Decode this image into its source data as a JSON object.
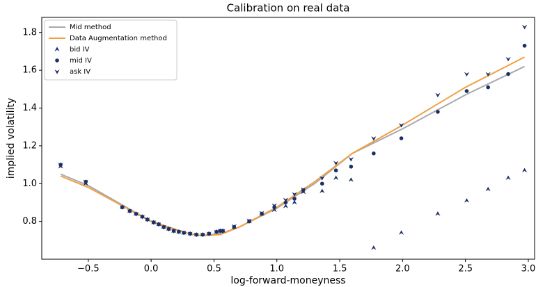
{
  "chart_data": {
    "type": "line",
    "title": "Calibration on real data",
    "xlabel": "log-forward-moneyness",
    "ylabel": "implied volatility",
    "xlim": [
      -0.87,
      3.05
    ],
    "ylim": [
      0.6,
      1.88
    ],
    "xticks": [
      {
        "value": -0.5,
        "label": "−0.5"
      },
      {
        "value": 0,
        "label": "0.0"
      },
      0.5,
      {
        "value": 1,
        "label": "1.0"
      },
      1.5,
      {
        "value": 2,
        "label": "2.0"
      },
      2.5,
      {
        "value": 3,
        "label": "3.0"
      }
    ],
    "yticks": [
      0.8,
      {
        "value": 1,
        "label": "1.0"
      },
      1.2,
      1.4,
      1.6,
      1.8
    ],
    "grid": false,
    "legend": "upper-left",
    "series": [
      {
        "name": "Mid method",
        "mode": "line",
        "color": "#a9a9ad",
        "x": [
          -0.72,
          -0.5,
          0,
          0.3,
          0.4,
          0.55,
          0.7,
          1.0,
          1.3,
          1.6,
          2.0,
          2.5,
          2.97
        ],
        "values": [
          1.05,
          0.99,
          0.8,
          0.735,
          0.725,
          0.735,
          0.77,
          0.87,
          1.0,
          1.16,
          1.29,
          1.47,
          1.62
        ]
      },
      {
        "name": "Data Augmentation method",
        "mode": "line",
        "color": "#f0a043",
        "x": [
          -0.72,
          -0.5,
          0,
          0.3,
          0.4,
          0.55,
          0.7,
          1.0,
          1.3,
          1.6,
          2.0,
          2.5,
          2.97
        ],
        "values": [
          1.04,
          0.98,
          0.8,
          0.735,
          0.725,
          0.73,
          0.77,
          0.875,
          1.01,
          1.16,
          1.31,
          1.51,
          1.67
        ]
      },
      {
        "name": "bid IV",
        "mode": "scatter",
        "marker": "up",
        "color": "#1c2f66",
        "x": [
          -0.72,
          -0.52,
          -0.23,
          -0.17,
          -0.12,
          -0.07,
          -0.03,
          0.02,
          0.06,
          0.1,
          0.14,
          0.18,
          0.22,
          0.26,
          0.31,
          0.36,
          0.41,
          0.46,
          0.52,
          0.55,
          0.57,
          0.66,
          0.78,
          0.88,
          0.98,
          1.07,
          1.14,
          1.21,
          1.36,
          1.47,
          1.59,
          1.77,
          1.99,
          2.28,
          2.51,
          2.68,
          2.84,
          2.97
        ],
        "values": [
          1.09,
          1.0,
          0.875,
          0.855,
          0.84,
          0.825,
          0.81,
          0.795,
          0.785,
          0.77,
          0.76,
          0.75,
          0.745,
          0.74,
          0.735,
          0.73,
          0.73,
          0.735,
          0.745,
          0.75,
          0.75,
          0.77,
          0.8,
          0.84,
          0.86,
          0.88,
          0.9,
          0.955,
          0.96,
          1.03,
          1.02,
          0.66,
          0.74,
          0.84,
          0.91,
          0.97,
          1.03,
          1.07
        ]
      },
      {
        "name": "mid IV",
        "mode": "scatter",
        "marker": "circle",
        "color": "#1c2f66",
        "x": [
          -0.72,
          -0.52,
          -0.23,
          -0.17,
          -0.12,
          -0.07,
          -0.03,
          0.02,
          0.06,
          0.1,
          0.14,
          0.18,
          0.22,
          0.26,
          0.31,
          0.36,
          0.41,
          0.46,
          0.52,
          0.55,
          0.57,
          0.66,
          0.78,
          0.88,
          0.98,
          1.07,
          1.14,
          1.21,
          1.36,
          1.47,
          1.59,
          1.77,
          1.99,
          2.28,
          2.51,
          2.68,
          2.84,
          2.97
        ],
        "values": [
          1.1,
          1.01,
          0.875,
          0.855,
          0.84,
          0.825,
          0.81,
          0.795,
          0.785,
          0.77,
          0.76,
          0.75,
          0.745,
          0.74,
          0.735,
          0.73,
          0.73,
          0.735,
          0.745,
          0.75,
          0.75,
          0.77,
          0.8,
          0.84,
          0.875,
          0.9,
          0.92,
          0.965,
          1.0,
          1.07,
          1.09,
          1.16,
          1.24,
          1.38,
          1.49,
          1.51,
          1.58,
          1.73
        ]
      },
      {
        "name": "ask IV",
        "mode": "scatter",
        "marker": "down",
        "color": "#1c2f66",
        "x": [
          -0.72,
          -0.52,
          -0.23,
          -0.17,
          -0.12,
          -0.07,
          -0.03,
          0.02,
          0.06,
          0.1,
          0.14,
          0.18,
          0.22,
          0.26,
          0.31,
          0.36,
          0.41,
          0.46,
          0.52,
          0.55,
          0.57,
          0.66,
          0.78,
          0.88,
          0.98,
          1.07,
          1.14,
          1.21,
          1.36,
          1.47,
          1.59,
          1.77,
          1.99,
          2.28,
          2.51,
          2.68,
          2.84,
          2.97
        ],
        "values": [
          1.1,
          1.01,
          0.875,
          0.855,
          0.84,
          0.825,
          0.81,
          0.795,
          0.785,
          0.77,
          0.76,
          0.75,
          0.745,
          0.74,
          0.735,
          0.73,
          0.73,
          0.735,
          0.745,
          0.75,
          0.75,
          0.775,
          0.805,
          0.845,
          0.885,
          0.915,
          0.945,
          0.97,
          1.03,
          1.11,
          1.13,
          1.24,
          1.31,
          1.47,
          1.58,
          1.58,
          1.66,
          1.83
        ]
      }
    ]
  }
}
